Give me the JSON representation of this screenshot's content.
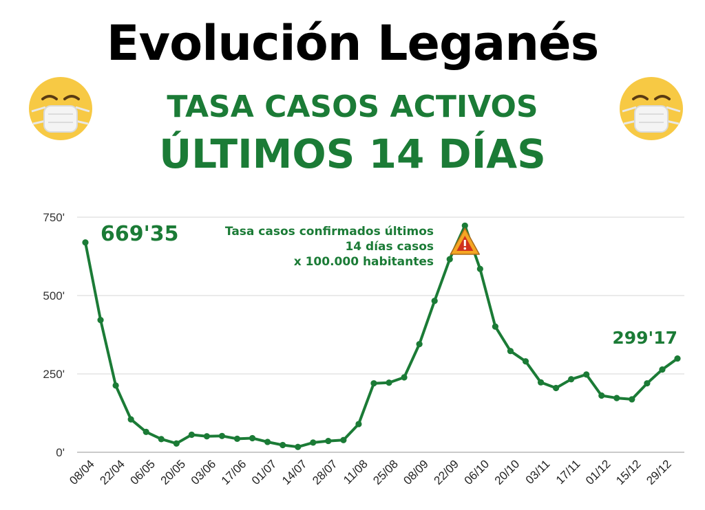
{
  "header": {
    "title": "Evolución Leganés",
    "subtitle_line1": "TASA CASOS ACTIVOS",
    "subtitle_line2": "ÚLTIMOS 14 DÍAS"
  },
  "icons": {
    "left": "mask-face-emoji-icon",
    "right": "mask-face-emoji-icon",
    "warning": "warning-triangle-icon"
  },
  "colors": {
    "accent": "#1b7b36",
    "grid": "#d4d4d4",
    "warning_fill": "#f5a623",
    "warning_mark": "#d0321d"
  },
  "chart_data": {
    "type": "line",
    "title": "",
    "xlabel": "",
    "ylabel": "",
    "ylim": [
      0,
      750
    ],
    "yticks": [
      0,
      250,
      500,
      750
    ],
    "ytick_labels": [
      "0'",
      "250'",
      "500'",
      "750'"
    ],
    "x_tick_labels": [
      "08/04",
      "22/04",
      "06/05",
      "20/05",
      "03/06",
      "17/06",
      "01/07",
      "14/07",
      "28/07",
      "11/08",
      "25/08",
      "08/09",
      "22/09",
      "06/10",
      "20/10",
      "03/11",
      "17/11",
      "01/12",
      "15/12",
      "29/12"
    ],
    "grid": true,
    "legend": "none",
    "series": [
      {
        "values": [
          669.35,
          422,
          213,
          105,
          65,
          42,
          28,
          56,
          51,
          52,
          43,
          45,
          33,
          23,
          17,
          31,
          36,
          39,
          90,
          220,
          222,
          239,
          345,
          483,
          616,
          723,
          585,
          401,
          323,
          290,
          223,
          205,
          233,
          248,
          181,
          173,
          169,
          220,
          264,
          299.17
        ]
      }
    ],
    "annotations": {
      "start_value": "669'35",
      "end_value": "299'17",
      "note": [
        "Tasa casos confirmados últimos",
        "14 días  casos",
        "x 100.000 habitantes"
      ]
    }
  }
}
